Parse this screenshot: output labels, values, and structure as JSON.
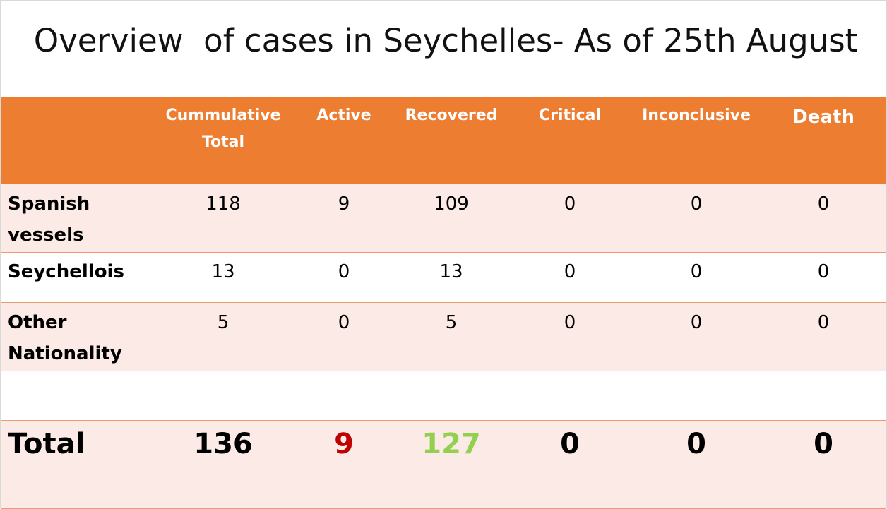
{
  "title": "Overview  of cases in Seychelles- As of 25th August",
  "columns": [
    "Cummulative Total",
    "Active",
    "Recovered",
    "Critical",
    "Inconclusive",
    "Death"
  ],
  "column_header_lines": [
    [
      "Cummulative",
      "Total"
    ],
    [
      "Active"
    ],
    [
      "Recovered"
    ],
    [
      "Critical"
    ],
    [
      "Inconclusive"
    ],
    [
      "Death"
    ]
  ],
  "rows": [
    {
      "label_lines": [
        "Spanish",
        "vessels"
      ],
      "values": [
        "118",
        "9",
        "109",
        "0",
        "0",
        "0"
      ]
    },
    {
      "label_lines": [
        "Seychellois"
      ],
      "values": [
        "13",
        "0",
        "13",
        "0",
        "0",
        "0"
      ]
    },
    {
      "label_lines": [
        "Other",
        "Nationality"
      ],
      "values": [
        "5",
        "0",
        "5",
        "0",
        "0",
        "0"
      ]
    }
  ],
  "total": {
    "label": "Total",
    "values": [
      "136",
      "9",
      "127",
      "0",
      "0",
      "0"
    ]
  },
  "colors": {
    "header_bg": "#ed7d31",
    "row_tint": "#fbeae5",
    "border": "#ee9a6a",
    "active_total": "#c00000",
    "recovered_total": "#92d050"
  }
}
